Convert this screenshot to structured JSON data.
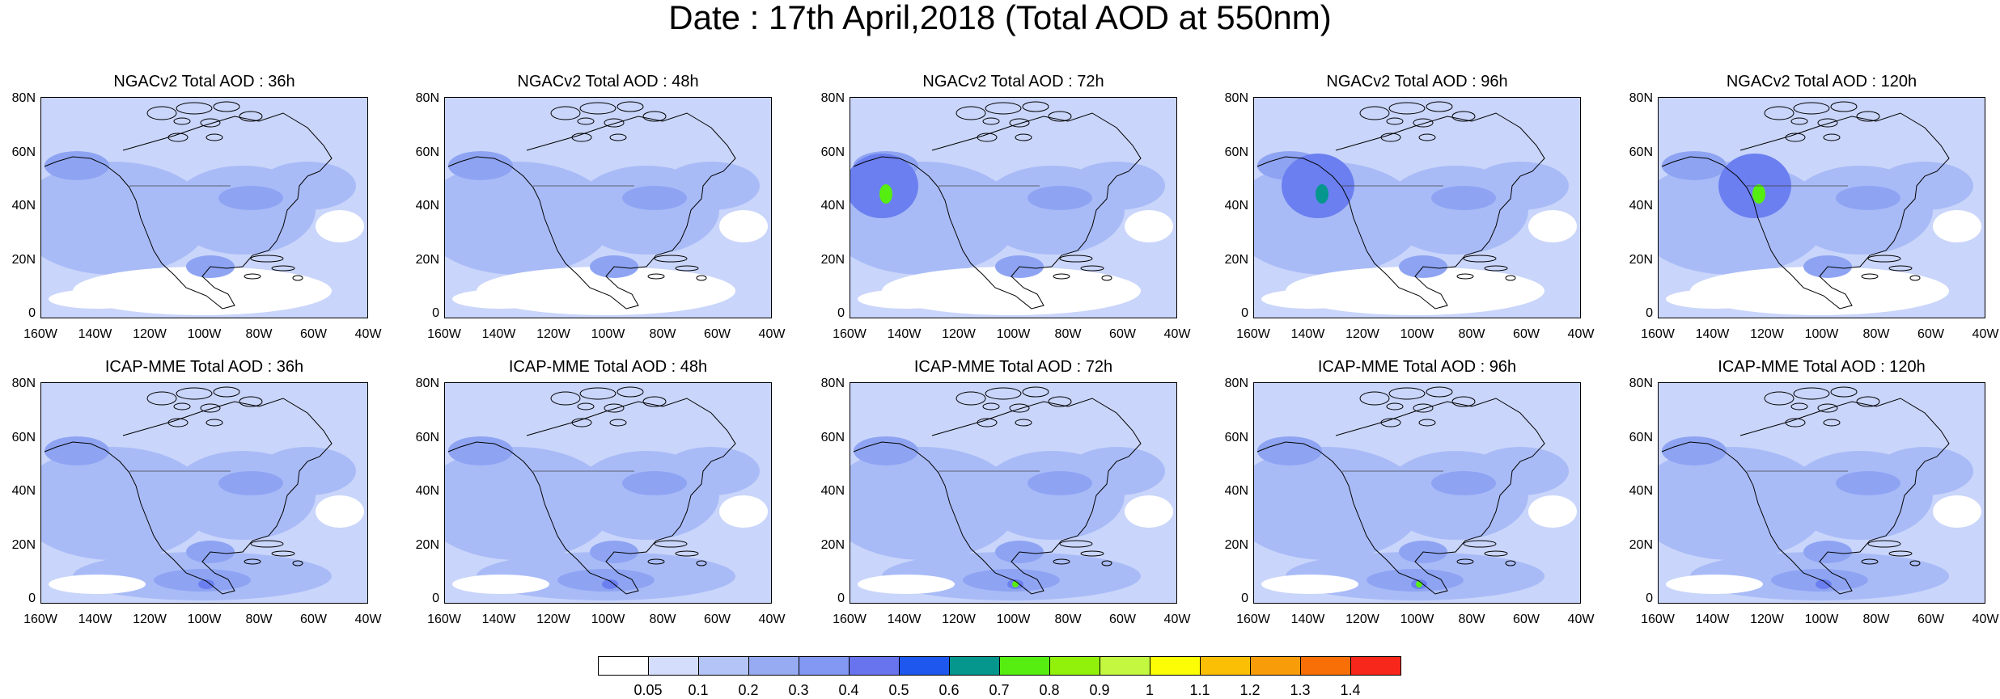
{
  "title": "Date : 17th April,2018 (Total AOD at 550nm)",
  "panels": [
    {
      "title": "NGACv2 Total AOD : 36h",
      "row": 0,
      "col": 0
    },
    {
      "title": "NGACv2 Total AOD : 48h",
      "row": 0,
      "col": 1
    },
    {
      "title": "NGACv2 Total AOD : 72h",
      "row": 0,
      "col": 2
    },
    {
      "title": "NGACv2 Total AOD : 96h",
      "row": 0,
      "col": 3
    },
    {
      "title": "NGACv2 Total AOD : 120h",
      "row": 0,
      "col": 4
    },
    {
      "title": "ICAP-MME Total AOD : 36h",
      "row": 1,
      "col": 0
    },
    {
      "title": "ICAP-MME Total AOD : 48h",
      "row": 1,
      "col": 1
    },
    {
      "title": "ICAP-MME Total AOD : 72h",
      "row": 1,
      "col": 2
    },
    {
      "title": "ICAP-MME Total AOD : 96h",
      "row": 1,
      "col": 3
    },
    {
      "title": "ICAP-MME Total AOD : 120h",
      "row": 1,
      "col": 4
    }
  ],
  "lat_ticks": [
    "80N",
    "60N",
    "40N",
    "20N",
    "0"
  ],
  "lon_ticks": [
    "160W",
    "140W",
    "120W",
    "100W",
    "80W",
    "60W",
    "40W"
  ],
  "colorbar": {
    "labels": [
      "0.05",
      "0.1",
      "0.2",
      "0.3",
      "0.4",
      "0.5",
      "0.6",
      "0.7",
      "0.8",
      "0.9",
      "1",
      "1.1",
      "1.2",
      "1.3",
      "1.4"
    ],
    "colors": [
      "#ffffff",
      "#d4ddfb",
      "#b4c4f7",
      "#97abf3",
      "#8298f2",
      "#6873ee",
      "#1d57ed",
      "#05968d",
      "#56ed11",
      "#91f10a",
      "#c3f740",
      "#fdfd06",
      "#fbbf05",
      "#f89d09",
      "#f96f07",
      "#f8271c"
    ]
  },
  "map_colors": {
    "background": "#c9d5fa",
    "medium": "#a9bbf7",
    "darker": "#8ea4f3",
    "dark": "#6b7ff0",
    "white": "#ffffff",
    "green": "#56ed11",
    "teal": "#05968d"
  }
}
